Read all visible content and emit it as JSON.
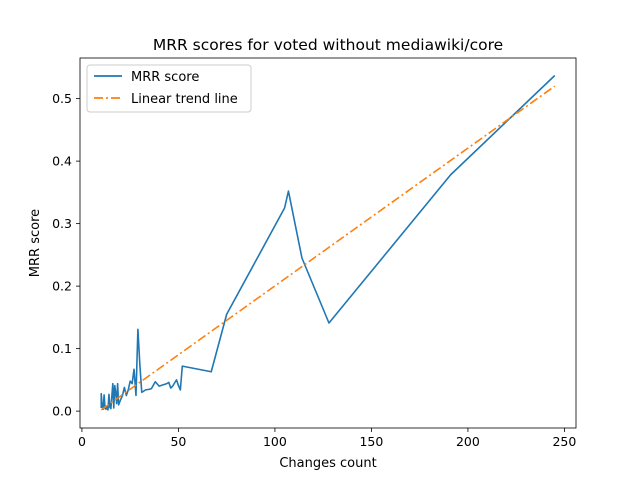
{
  "chart_data": {
    "type": "line",
    "title": "MRR scores for voted without mediawiki/core",
    "xlabel": "Changes count",
    "ylabel": "MRR score",
    "xlim": [
      -1,
      256
    ],
    "ylim": [
      -0.027,
      0.565
    ],
    "xticks": [
      0,
      50,
      100,
      150,
      200,
      250
    ],
    "xtick_labels": [
      "0",
      "50",
      "100",
      "150",
      "200",
      "250"
    ],
    "yticks": [
      0.0,
      0.1,
      0.2,
      0.3,
      0.4,
      0.5
    ],
    "ytick_labels": [
      "0.0",
      "0.1",
      "0.2",
      "0.3",
      "0.4",
      "0.5"
    ],
    "grid": false,
    "legend_position": "top-left",
    "series": [
      {
        "name": "MRR score",
        "color": "#1f77b4",
        "style": "solid",
        "x": [
          10,
          10,
          10.5,
          11,
          11.5,
          12,
          12.5,
          13,
          13.5,
          14,
          14.5,
          15,
          16,
          16.5,
          17,
          17.5,
          18,
          18.5,
          19,
          20,
          21,
          22,
          23,
          24,
          25,
          26,
          27,
          28,
          29,
          30,
          31,
          33,
          35,
          36,
          38,
          40,
          42,
          44,
          45,
          46,
          47,
          48,
          49,
          50,
          51,
          52,
          67,
          75,
          105,
          107,
          114,
          128,
          191,
          245
        ],
        "y": [
          0.005,
          0.028,
          0.008,
          0.003,
          0.026,
          0.004,
          0.003,
          0.008,
          0.002,
          0.027,
          0.006,
          0.004,
          0.044,
          0.005,
          0.041,
          0.03,
          0.012,
          0.044,
          0.01,
          0.018,
          0.025,
          0.038,
          0.025,
          0.034,
          0.048,
          0.044,
          0.067,
          0.025,
          0.131,
          0.075,
          0.03,
          0.034,
          0.035,
          0.036,
          0.047,
          0.04,
          0.042,
          0.044,
          0.046,
          0.037,
          0.04,
          0.045,
          0.05,
          0.041,
          0.034,
          0.072,
          0.063,
          0.155,
          0.325,
          0.352,
          0.245,
          0.141,
          0.378,
          0.537
        ]
      },
      {
        "name": "Linear trend line",
        "color": "#ff7f0e",
        "style": "dashdot",
        "x": [
          10,
          245
        ],
        "y": [
          0.002,
          0.52
        ]
      }
    ]
  }
}
